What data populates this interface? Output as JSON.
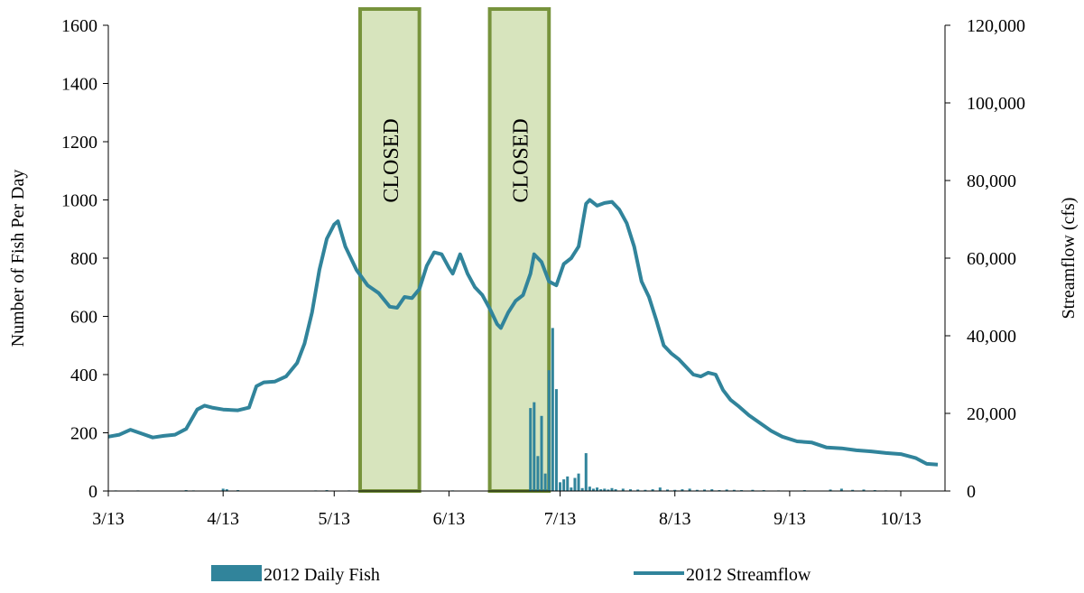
{
  "chart_data": {
    "type": "bar+line",
    "x_axis": {
      "tick_labels": [
        "3/13",
        "4/13",
        "5/13",
        "6/13",
        "7/13",
        "8/13",
        "9/13",
        "10/13"
      ],
      "tick_dates": [
        "2012-03-13",
        "2012-04-13",
        "2012-05-13",
        "2012-06-13",
        "2012-07-13",
        "2012-08-13",
        "2012-09-13",
        "2012-10-13"
      ],
      "range": [
        "2012-03-13",
        "2012-10-23"
      ]
    },
    "y_left": {
      "label": "Number of Fish Per Day",
      "ylim": [
        0,
        1600
      ],
      "ticks": [
        0,
        200,
        400,
        600,
        800,
        1000,
        1200,
        1400,
        1600
      ],
      "tick_labels": [
        "0",
        "200",
        "400",
        "600",
        "800",
        "1000",
        "1200",
        "1400",
        "1600"
      ]
    },
    "y_right": {
      "label": "Streamflow (cfs)",
      "ylim": [
        0,
        120000
      ],
      "ticks": [
        0,
        20000,
        40000,
        60000,
        80000,
        100000,
        120000
      ],
      "tick_labels": [
        "0",
        "20,000",
        "40,000",
        "60,000",
        "80,000",
        "100,000",
        "120,000"
      ]
    },
    "closed_periods": [
      {
        "label": "CLOSED",
        "start": "2012-05-20",
        "end": "2012-06-05"
      },
      {
        "label": "CLOSED",
        "start": "2012-06-24",
        "end": "2012-07-10"
      }
    ],
    "series": [
      {
        "name": "2012 Daily Fish",
        "type": "bar",
        "axis": "left",
        "color": "#31849b",
        "points": [
          [
            "2012-03-15",
            2
          ],
          [
            "2012-03-18",
            1
          ],
          [
            "2012-03-21",
            2
          ],
          [
            "2012-04-03",
            3
          ],
          [
            "2012-04-05",
            2
          ],
          [
            "2012-04-13",
            8
          ],
          [
            "2012-04-14",
            6
          ],
          [
            "2012-04-17",
            3
          ],
          [
            "2012-05-08",
            2
          ],
          [
            "2012-05-11",
            3
          ],
          [
            "2012-05-17",
            2
          ],
          [
            "2012-06-14",
            2
          ],
          [
            "2012-07-05",
            285
          ],
          [
            "2012-07-06",
            305
          ],
          [
            "2012-07-07",
            120
          ],
          [
            "2012-07-08",
            258
          ],
          [
            "2012-07-09",
            60
          ],
          [
            "2012-07-10",
            415
          ],
          [
            "2012-07-11",
            560
          ],
          [
            "2012-07-12",
            350
          ],
          [
            "2012-07-13",
            30
          ],
          [
            "2012-07-14",
            40
          ],
          [
            "2012-07-15",
            50
          ],
          [
            "2012-07-16",
            12
          ],
          [
            "2012-07-17",
            45
          ],
          [
            "2012-07-18",
            60
          ],
          [
            "2012-07-19",
            10
          ],
          [
            "2012-07-20",
            130
          ],
          [
            "2012-07-21",
            15
          ],
          [
            "2012-07-22",
            8
          ],
          [
            "2012-07-23",
            12
          ],
          [
            "2012-07-24",
            6
          ],
          [
            "2012-07-25",
            8
          ],
          [
            "2012-07-26",
            5
          ],
          [
            "2012-07-27",
            10
          ],
          [
            "2012-07-28",
            6
          ],
          [
            "2012-07-30",
            8
          ],
          [
            "2012-08-01",
            6
          ],
          [
            "2012-08-03",
            5
          ],
          [
            "2012-08-05",
            4
          ],
          [
            "2012-08-07",
            6
          ],
          [
            "2012-08-09",
            12
          ],
          [
            "2012-08-11",
            5
          ],
          [
            "2012-08-13",
            4
          ],
          [
            "2012-08-15",
            6
          ],
          [
            "2012-08-17",
            8
          ],
          [
            "2012-08-19",
            4
          ],
          [
            "2012-08-21",
            5
          ],
          [
            "2012-08-23",
            6
          ],
          [
            "2012-08-25",
            3
          ],
          [
            "2012-08-27",
            5
          ],
          [
            "2012-08-29",
            4
          ],
          [
            "2012-08-31",
            3
          ],
          [
            "2012-09-03",
            4
          ],
          [
            "2012-09-06",
            3
          ],
          [
            "2012-09-10",
            2
          ],
          [
            "2012-09-17",
            3
          ],
          [
            "2012-09-24",
            5
          ],
          [
            "2012-09-27",
            8
          ],
          [
            "2012-09-30",
            4
          ],
          [
            "2012-10-03",
            5
          ],
          [
            "2012-10-06",
            3
          ],
          [
            "2012-10-09",
            2
          ]
        ]
      },
      {
        "name": "2012 Streamflow",
        "type": "line",
        "axis": "right",
        "color": "#31849b",
        "points": [
          [
            "2012-03-13",
            14000
          ],
          [
            "2012-03-16",
            14500
          ],
          [
            "2012-03-19",
            15800
          ],
          [
            "2012-03-22",
            14800
          ],
          [
            "2012-03-25",
            13800
          ],
          [
            "2012-03-28",
            14200
          ],
          [
            "2012-03-31",
            14500
          ],
          [
            "2012-04-03",
            16000
          ],
          [
            "2012-04-06",
            21000
          ],
          [
            "2012-04-08",
            22000
          ],
          [
            "2012-04-10",
            21500
          ],
          [
            "2012-04-13",
            21000
          ],
          [
            "2012-04-17",
            20800
          ],
          [
            "2012-04-20",
            21500
          ],
          [
            "2012-04-22",
            27000
          ],
          [
            "2012-04-24",
            28000
          ],
          [
            "2012-04-27",
            28200
          ],
          [
            "2012-04-30",
            29500
          ],
          [
            "2012-05-03",
            33000
          ],
          [
            "2012-05-05",
            38000
          ],
          [
            "2012-05-07",
            46000
          ],
          [
            "2012-05-09",
            57000
          ],
          [
            "2012-05-11",
            65000
          ],
          [
            "2012-05-13",
            68700
          ],
          [
            "2012-05-14",
            69500
          ],
          [
            "2012-05-16",
            63000
          ],
          [
            "2012-05-19",
            57000
          ],
          [
            "2012-05-22",
            53000
          ],
          [
            "2012-05-25",
            51000
          ],
          [
            "2012-05-28",
            47500
          ],
          [
            "2012-05-30",
            47200
          ],
          [
            "2012-06-01",
            50000
          ],
          [
            "2012-06-03",
            49700
          ],
          [
            "2012-06-05",
            52000
          ],
          [
            "2012-06-07",
            58000
          ],
          [
            "2012-06-09",
            61500
          ],
          [
            "2012-06-11",
            61000
          ],
          [
            "2012-06-13",
            57500
          ],
          [
            "2012-06-14",
            56000
          ],
          [
            "2012-06-16",
            61000
          ],
          [
            "2012-06-18",
            56000
          ],
          [
            "2012-06-20",
            52500
          ],
          [
            "2012-06-22",
            50500
          ],
          [
            "2012-06-24",
            47000
          ],
          [
            "2012-06-26",
            43000
          ],
          [
            "2012-06-27",
            42000
          ],
          [
            "2012-06-29",
            46000
          ],
          [
            "2012-07-01",
            49000
          ],
          [
            "2012-07-03",
            50500
          ],
          [
            "2012-07-05",
            56000
          ],
          [
            "2012-07-06",
            61000
          ],
          [
            "2012-07-08",
            59000
          ],
          [
            "2012-07-10",
            54000
          ],
          [
            "2012-07-12",
            53000
          ],
          [
            "2012-07-14",
            58500
          ],
          [
            "2012-07-16",
            60000
          ],
          [
            "2012-07-18",
            63000
          ],
          [
            "2012-07-20",
            74000
          ],
          [
            "2012-07-21",
            75000
          ],
          [
            "2012-07-23",
            73500
          ],
          [
            "2012-07-25",
            74200
          ],
          [
            "2012-07-27",
            74500
          ],
          [
            "2012-07-29",
            72500
          ],
          [
            "2012-07-31",
            69000
          ],
          [
            "2012-08-02",
            63000
          ],
          [
            "2012-08-04",
            54000
          ],
          [
            "2012-08-06",
            50000
          ],
          [
            "2012-08-08",
            44000
          ],
          [
            "2012-08-10",
            37500
          ],
          [
            "2012-08-12",
            35500
          ],
          [
            "2012-08-14",
            34000
          ],
          [
            "2012-08-16",
            32000
          ],
          [
            "2012-08-18",
            30000
          ],
          [
            "2012-08-20",
            29500
          ],
          [
            "2012-08-22",
            30500
          ],
          [
            "2012-08-24",
            30000
          ],
          [
            "2012-08-26",
            26000
          ],
          [
            "2012-08-28",
            23500
          ],
          [
            "2012-08-30",
            22000
          ],
          [
            "2012-09-02",
            19500
          ],
          [
            "2012-09-05",
            17500
          ],
          [
            "2012-09-08",
            15500
          ],
          [
            "2012-09-11",
            14000
          ],
          [
            "2012-09-15",
            12800
          ],
          [
            "2012-09-19",
            12500
          ],
          [
            "2012-09-23",
            11200
          ],
          [
            "2012-09-27",
            11000
          ],
          [
            "2012-10-01",
            10500
          ],
          [
            "2012-10-05",
            10200
          ],
          [
            "2012-10-09",
            9800
          ],
          [
            "2012-10-13",
            9500
          ],
          [
            "2012-10-17",
            8500
          ],
          [
            "2012-10-20",
            7000
          ],
          [
            "2012-10-23",
            6800
          ]
        ]
      }
    ],
    "legend": {
      "placement": "bottom",
      "entries": [
        "2012 Daily Fish",
        "2012 Streamflow"
      ]
    },
    "closed_box_color": "#77933c",
    "closed_fill_color": "#d7e4bd",
    "grid": false
  }
}
